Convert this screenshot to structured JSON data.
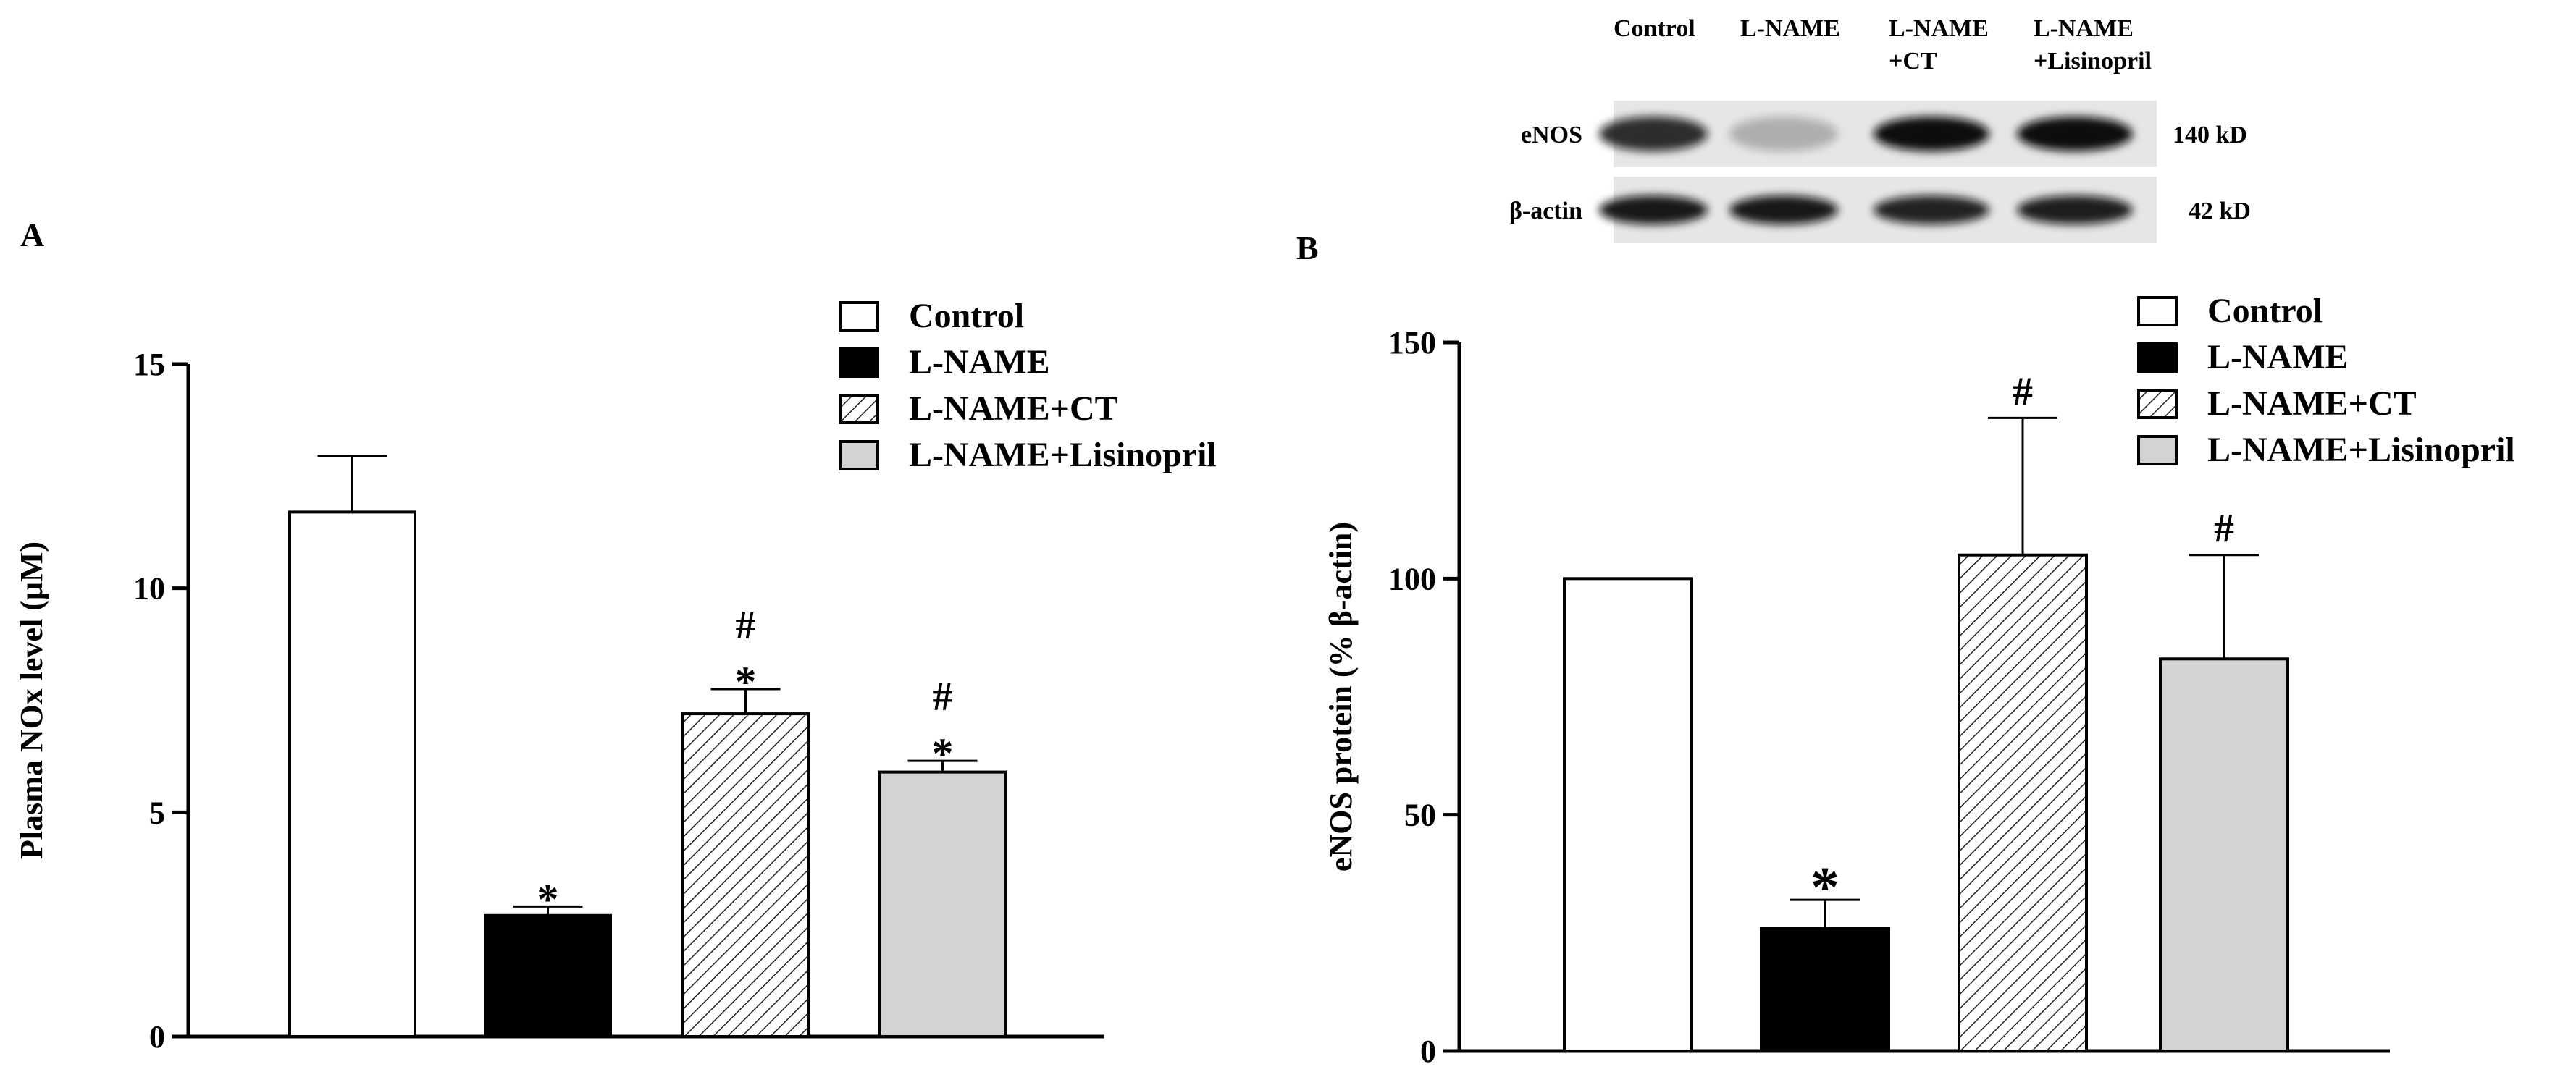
{
  "chart_data": [
    {
      "type": "bar",
      "panel_label": "A",
      "categories": [
        "Control",
        "L-NAME",
        "L-NAME+CT",
        "L-NAME+Lisinopril"
      ],
      "values": [
        11.7,
        2.7,
        7.2,
        5.9
      ],
      "errors": [
        1.25,
        0.2,
        0.55,
        0.25
      ],
      "annotations": [
        "",
        "*",
        "#\n*",
        "#\n*"
      ],
      "legend": [
        "Control",
        "L-NAME",
        "L-NAME+CT",
        "L-NAME+Lisinopril"
      ],
      "legend_position": "top-right",
      "ylabel": "Plasma NOx level (μM)",
      "ylim": [
        0,
        15
      ],
      "yticks": [
        0,
        5,
        10,
        15
      ],
      "grid": false
    },
    {
      "type": "bar",
      "panel_label": "B",
      "categories": [
        "Control",
        "L-NAME",
        "L-NAME+CT",
        "L-NAME+Lisinopril"
      ],
      "values": [
        100,
        26,
        105,
        83
      ],
      "errors": [
        0,
        6,
        29,
        22
      ],
      "annotations": [
        "",
        "*",
        "#",
        "#"
      ],
      "legend": [
        "Control",
        "L-NAME",
        "L-NAME+CT",
        "L-NAME+Lisinopril"
      ],
      "legend_position": "top-right",
      "ylabel": "eNOS protein (% β-actin)",
      "ylim": [
        0,
        150
      ],
      "yticks": [
        0,
        50,
        100,
        150
      ],
      "grid": false
    }
  ],
  "blot": {
    "columns": [
      "Control",
      "L-NAME",
      "L-NAME\n+CT",
      "L-NAME\n+Lisinopril"
    ],
    "rows": [
      {
        "label": "eNOS",
        "size": "140 kD",
        "intensities": [
          0.85,
          0.25,
          1.0,
          1.0
        ]
      },
      {
        "label": "β-actin",
        "size": "42 kD",
        "intensities": [
          0.95,
          0.95,
          0.9,
          0.92
        ]
      }
    ]
  },
  "colors": {
    "control": "#ffffff",
    "lname": "#000000",
    "ct": "hatched",
    "lisinopril": "#d3d3d3"
  }
}
